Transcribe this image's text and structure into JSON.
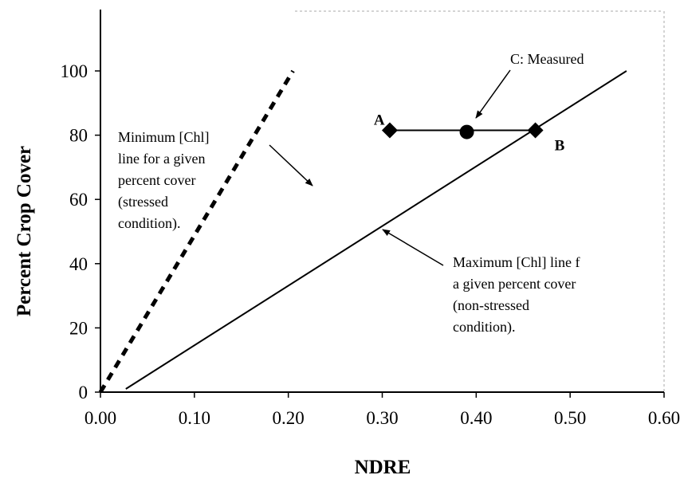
{
  "chart_data": {
    "type": "line",
    "xlabel": "NDRE",
    "ylabel": "Percent Crop Cover",
    "xlim": [
      0.0,
      0.6
    ],
    "ylim": [
      0,
      120
    ],
    "x_ticks": [
      "0.00",
      "0.10",
      "0.20",
      "0.30",
      "0.40",
      "0.50",
      "0.60"
    ],
    "y_ticks": [
      "0",
      "20",
      "40",
      "60",
      "80",
      "100"
    ],
    "grid": false,
    "legend": "none",
    "series": [
      {
        "style": "dashed",
        "color": "#000000",
        "x": [
          0.0,
          0.205
        ],
        "y": [
          0,
          100
        ]
      },
      {
        "style": "solid",
        "color": "#000000",
        "x": [
          0.027,
          0.56
        ],
        "y": [
          1,
          100
        ]
      },
      {
        "style": "solid",
        "color": "#000000",
        "x": [
          0.308,
          0.463
        ],
        "y": [
          81.5,
          81.5
        ]
      }
    ],
    "points": [
      {
        "label": "A",
        "x": 0.308,
        "y": 81.5,
        "marker": "diamond"
      },
      {
        "label": "",
        "x": 0.39,
        "y": 81.0,
        "marker": "circle"
      },
      {
        "label": "B",
        "x": 0.463,
        "y": 81.5,
        "marker": "diamond"
      }
    ],
    "annotations": {
      "measured": "C: Measured",
      "min_line": [
        "Minimum [Chl]",
        "line for a given",
        "percent cover",
        "(stressed",
        "condition)."
      ],
      "max_line": [
        "Maximum [Chl] line f",
        "a given percent cover",
        "(non-stressed",
        "condition)."
      ]
    }
  }
}
